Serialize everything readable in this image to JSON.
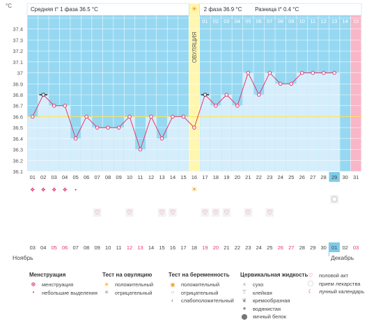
{
  "chart_data": {
    "type": "line",
    "y_unit": "°C",
    "ylim": [
      36.1,
      37.5
    ],
    "yticks": [
      "37.4",
      "37.3",
      "37.2",
      "37.1",
      "37",
      "36.9",
      "36.8",
      "36.7",
      "36.6",
      "36.5",
      "36.4",
      "36.3",
      "36.2",
      "36.1"
    ],
    "phase1_label": "Средняя t° 1 фаза 36.5 °C",
    "phase2_label": "2 фаза 36.9 °C",
    "diff_label": "Разница t° 0.4 °C",
    "ovulation_label": "ОВУЛЯЦИЯ",
    "phase2_days": [
      "01",
      "02",
      "03",
      "04",
      "05",
      "06",
      "07",
      "08",
      "09",
      "10",
      "11",
      "12",
      "13",
      "14",
      "15"
    ],
    "cycle_days": [
      "01",
      "02",
      "03",
      "04",
      "05",
      "06",
      "07",
      "08",
      "09",
      "10",
      "11",
      "12",
      "13",
      "14",
      "15",
      "16",
      "17",
      "18",
      "19",
      "20",
      "21",
      "22",
      "23",
      "24",
      "25",
      "26",
      "27",
      "28",
      "29",
      "30",
      "31"
    ],
    "values": [
      36.6,
      36.8,
      36.7,
      36.7,
      36.4,
      36.6,
      36.5,
      36.5,
      36.5,
      36.6,
      36.3,
      36.6,
      36.4,
      36.6,
      36.6,
      36.5,
      36.8,
      36.7,
      36.8,
      36.7,
      37.0,
      36.8,
      37.0,
      36.9,
      36.9,
      37.0,
      37.0,
      37.0,
      37.0,
      null,
      null
    ],
    "dates": [
      "03",
      "04",
      "05",
      "06",
      "07",
      "08",
      "09",
      "10",
      "11",
      "12",
      "13",
      "14",
      "15",
      "16",
      "17",
      "18",
      "19",
      "20",
      "21",
      "22",
      "23",
      "24",
      "25",
      "26",
      "27",
      "28",
      "29",
      "30",
      "01",
      "02",
      "03"
    ],
    "month_start": "Ноябрь",
    "month_end": "Декабрь",
    "coverline": 36.6
  },
  "legend": {
    "menstruation": {
      "title": "Менструация",
      "items": [
        "менструация",
        "небольшие выделения"
      ]
    },
    "ovulation_test": {
      "title": "Тест на овуляцию",
      "items": [
        "положительный",
        "отрицательный"
      ]
    },
    "pregnancy_test": {
      "title": "Тест на беременность",
      "items": [
        "положительный",
        "отрицательный",
        "слабоположительный"
      ]
    },
    "cervical": {
      "title": "Цервикальная жидкость",
      "items": [
        "сухо",
        "клейкая",
        "кремообразная",
        "водянистая",
        "яичный белок"
      ]
    },
    "other": {
      "items": [
        "половой акт",
        "прием лекарства",
        "лунный календарь"
      ]
    }
  },
  "colors": {
    "phase1": "#96d8f2",
    "phase2": "#96d8f2",
    "bar": "#d6eefb",
    "ovulation": "#fff7b0",
    "pink": "#f9b6c8",
    "line": "#e13a6c",
    "grid": "#ffffff",
    "coverline": "#ffe14d"
  }
}
